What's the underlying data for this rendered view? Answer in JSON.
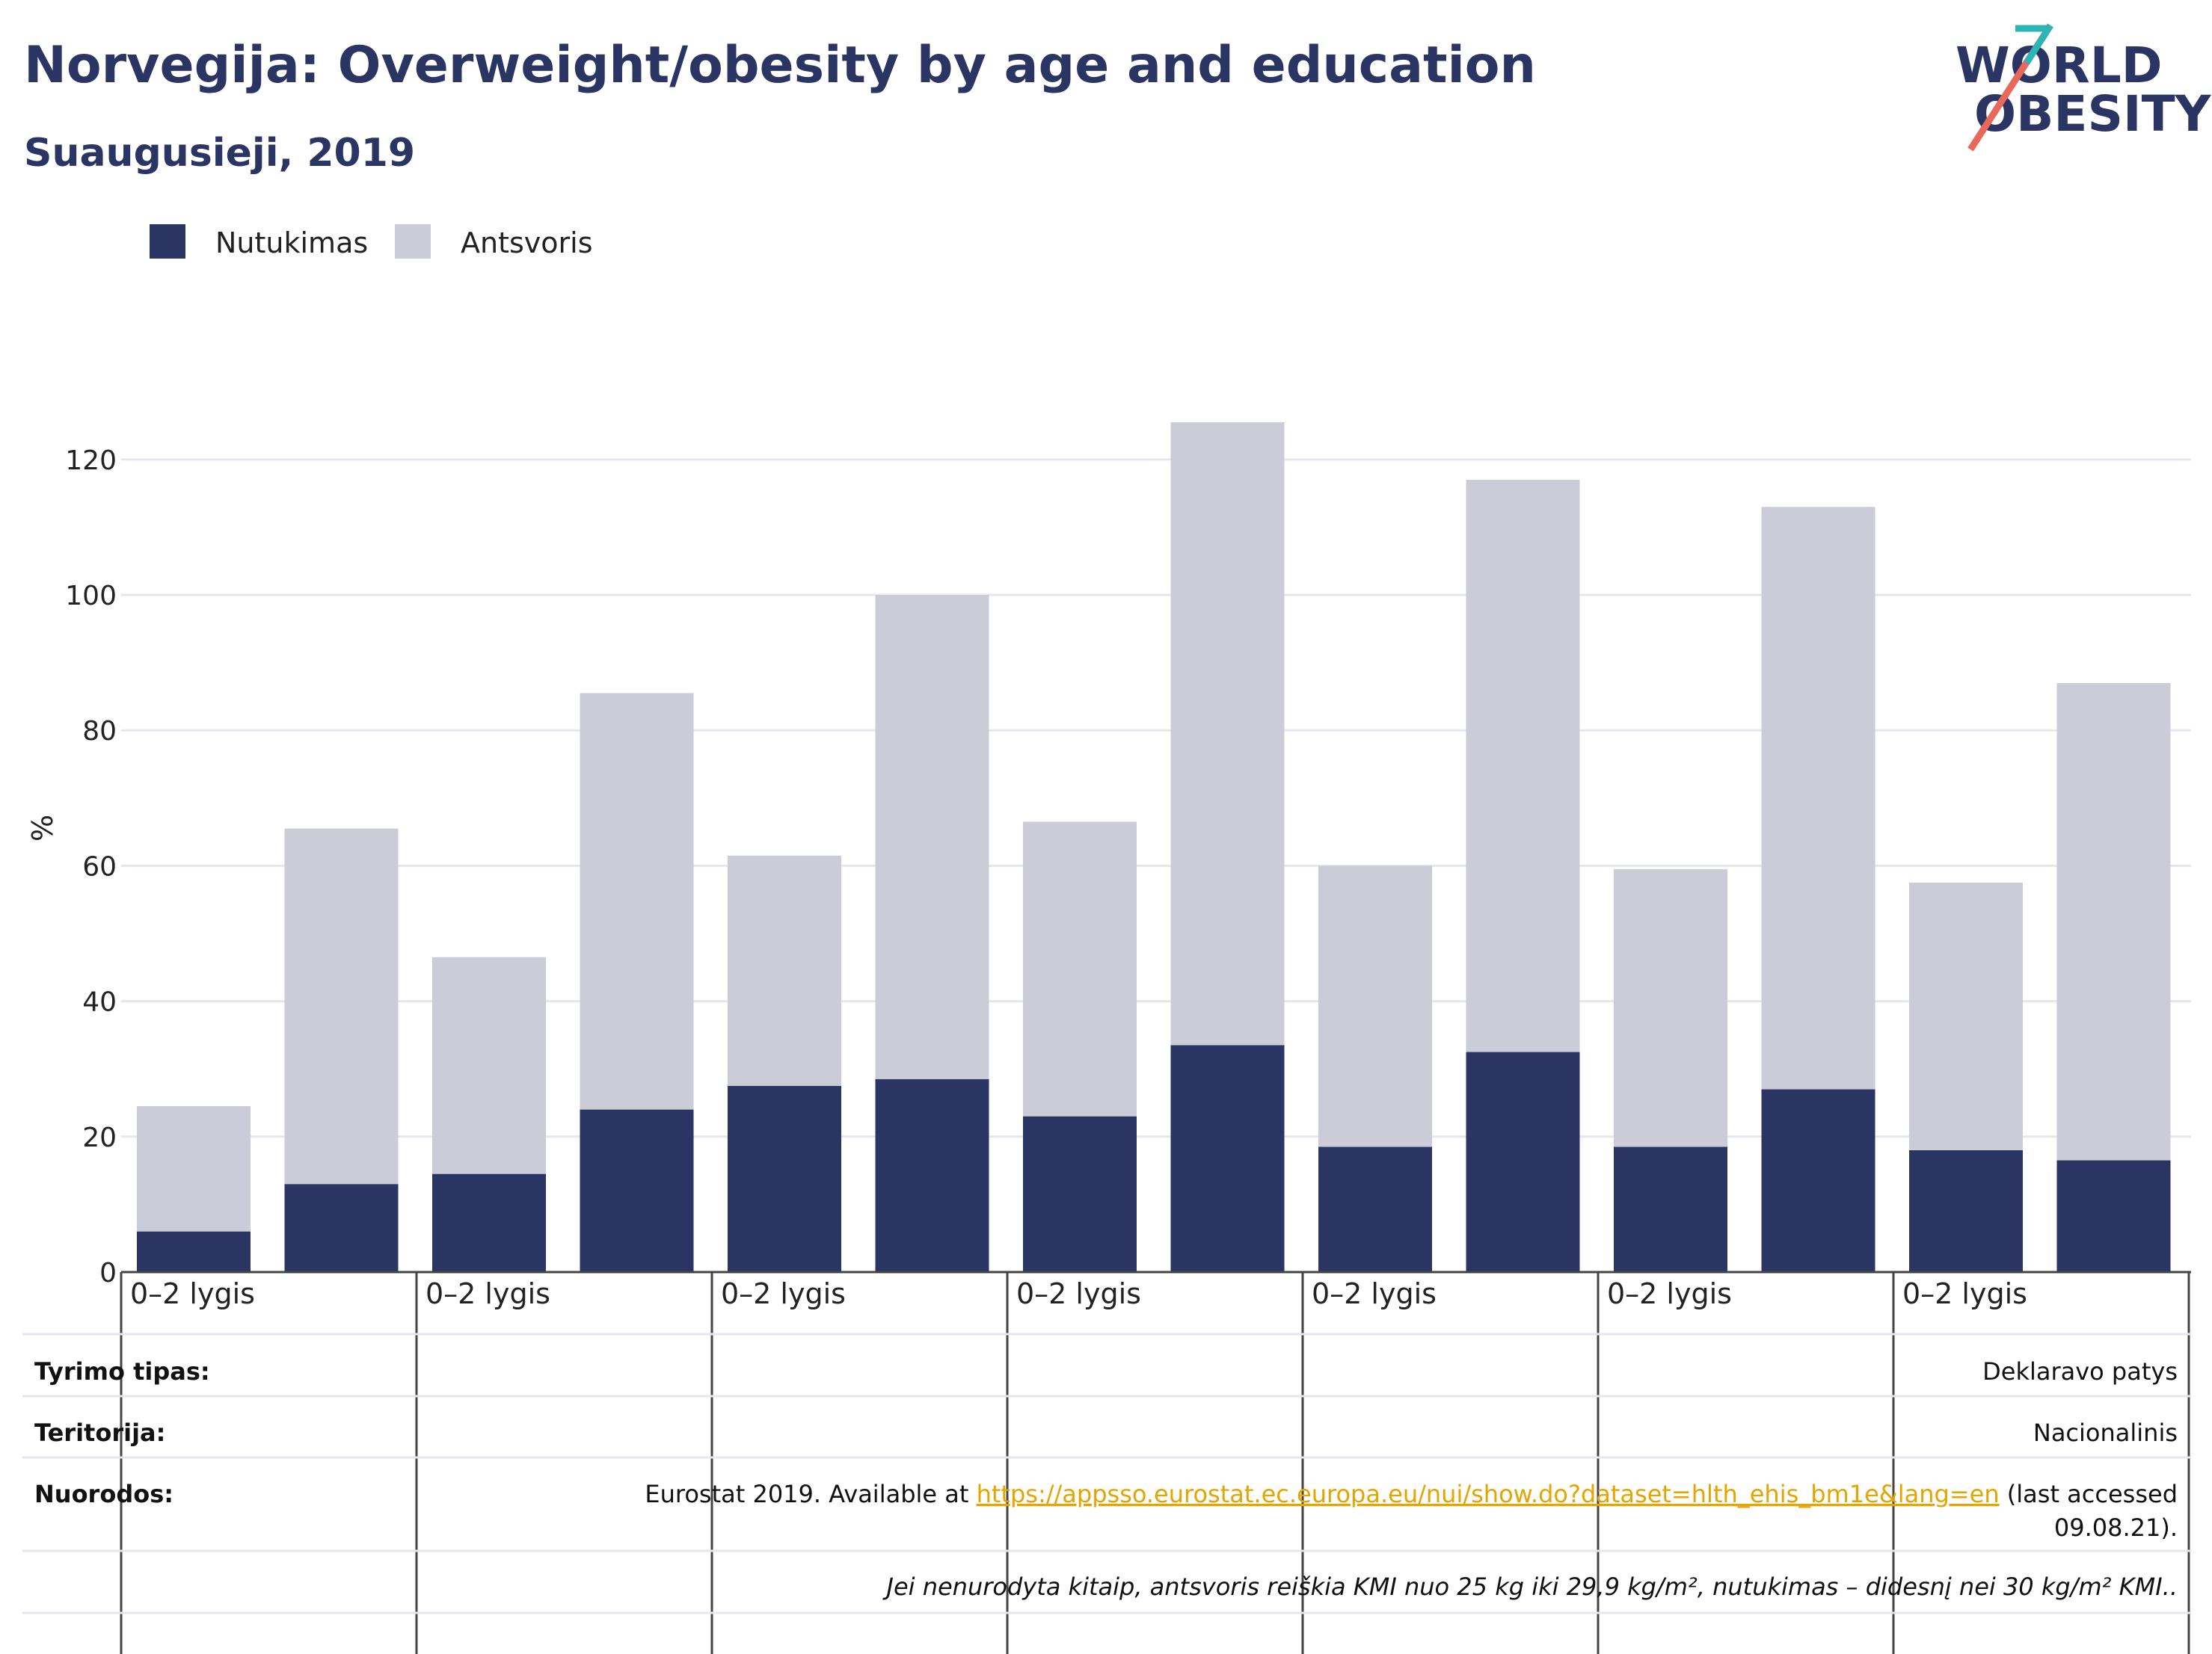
{
  "header": {
    "title": "Norvegija: Overweight/obesity by age and education",
    "subtitle": "Suaugusieji, 2019"
  },
  "logo": {
    "line1": "WORLD",
    "line2": "OBESITY"
  },
  "legend": {
    "placement": "top-left",
    "items": [
      {
        "label": "Nutukimas",
        "color": "#2a3563"
      },
      {
        "label": "Antsvoris",
        "color": "#cbccd8"
      }
    ]
  },
  "chart_data": {
    "type": "bar",
    "stacked": true,
    "ylabel": "%",
    "ylim": [
      0,
      125
    ],
    "yticks": [
      0,
      20,
      40,
      60,
      80,
      100,
      120
    ],
    "grid": true,
    "x_group_labels": [
      "0–2 lygis",
      "0–2 lygis",
      "0–2 lygis",
      "0–2 lygis",
      "0–2 lygis",
      "0–2 lygis",
      "0–2 lygis"
    ],
    "bars_per_group": 2,
    "series": [
      {
        "name": "Nutukimas",
        "color": "#2a3563",
        "values": [
          6,
          13,
          14.5,
          24,
          27.5,
          28.5,
          23,
          33.5,
          18.5,
          32.5,
          18.5,
          27,
          18,
          16.5
        ]
      },
      {
        "name": "Antsvoris",
        "color": "#cbccd8",
        "values": [
          18.5,
          52.5,
          32,
          61.5,
          34,
          71.5,
          43.5,
          92,
          41.5,
          84.5,
          41,
          86,
          39.5,
          70.5
        ]
      }
    ]
  },
  "meta": {
    "rows": [
      {
        "label": "Tyrimo tipas:",
        "value": "Deklaravo patys"
      },
      {
        "label": "Teritorija:",
        "value": "Nacionalinis"
      },
      {
        "label": "Nuorodos:",
        "value_prefix": "Eurostat 2019. Available at ",
        "link": "https://appsso.eurostat.ec.europa.eu/nui/show.do?dataset=hlth_ehis_bm1e&lang=en",
        "value_suffix": " (last accessed",
        "value_line2": "09.08.21)."
      }
    ],
    "note": "Jei nenurodyta kitaip, antsvoris reiškia KMI nuo 25 kg iki 29,9 kg/m², nutukimas – didesnį nei 30 kg/m² KMI.."
  }
}
